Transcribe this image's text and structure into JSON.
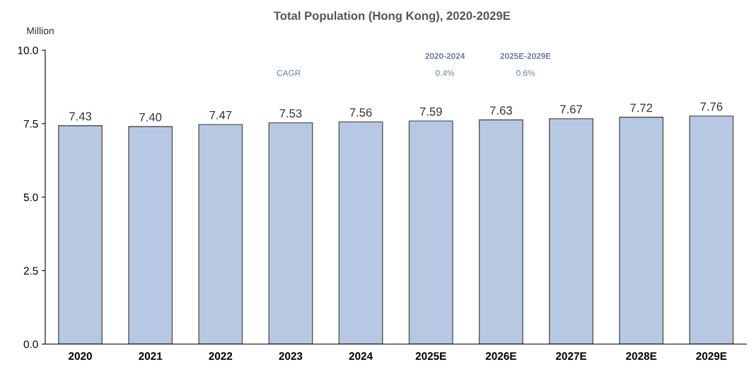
{
  "chart_data": {
    "type": "bar",
    "title": "Total Population (Hong Kong), 2020-2029E",
    "ylabel": "Million",
    "categories": [
      "2020",
      "2021",
      "2022",
      "2023",
      "2024",
      "2025E",
      "2026E",
      "2027E",
      "2028E",
      "2029E"
    ],
    "values": [
      7.43,
      7.4,
      7.47,
      7.53,
      7.56,
      7.59,
      7.63,
      7.67,
      7.72,
      7.76
    ],
    "color": "#b7c9e2",
    "ylim": [
      0,
      10
    ],
    "yticks": [
      {
        "value": 0,
        "label": "0.0"
      },
      {
        "value": 2.5,
        "label": "2.5"
      },
      {
        "value": 5,
        "label": "5.0"
      },
      {
        "value": 7.5,
        "label": "7.5"
      },
      {
        "value": 10,
        "label": "10.0"
      }
    ],
    "value_labels": [
      "7.43",
      "7.40",
      "7.47",
      "7.53",
      "7.56",
      "7.59",
      "7.63",
      "7.67",
      "7.72",
      "7.76"
    ],
    "grid": false,
    "legend": false,
    "annotations": [
      "2020-2024",
      "2025E-2029E",
      "CAGR",
      "0.4%",
      "0.6%"
    ]
  }
}
